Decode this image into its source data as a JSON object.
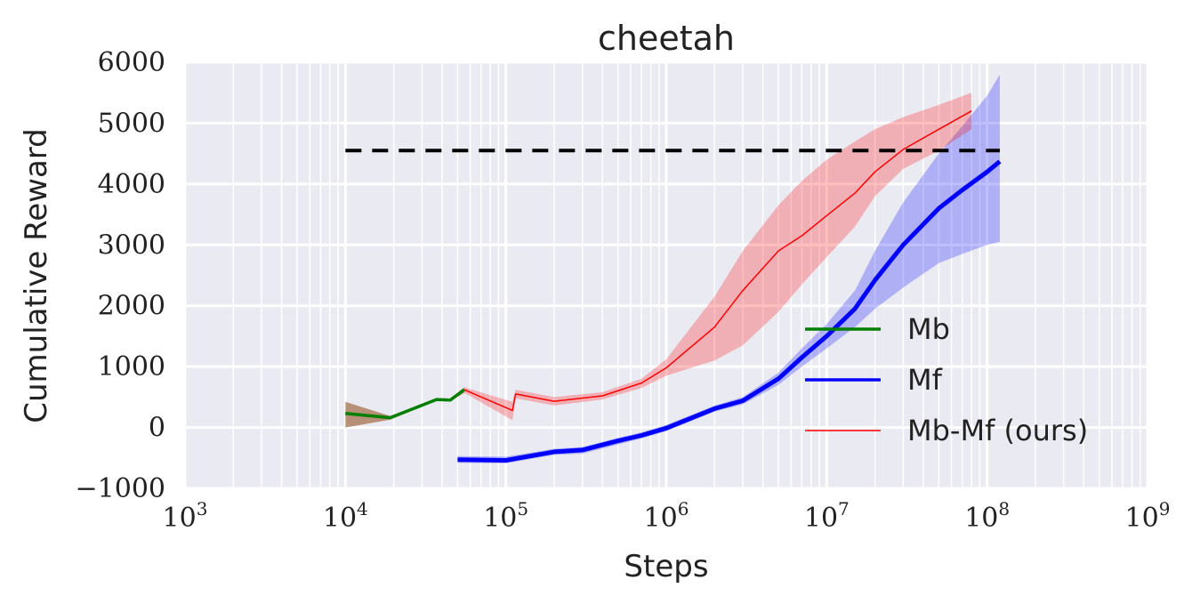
{
  "chart_data": {
    "type": "line",
    "title": "cheetah",
    "xlabel": "Steps",
    "ylabel": "Cumulative Reward",
    "x_scale": "log",
    "xlim": [
      1000,
      1000000000
    ],
    "ylim": [
      -1000,
      6000
    ],
    "grid": true,
    "x_ticks": [
      {
        "value": 1000,
        "base": "10",
        "exp": "3"
      },
      {
        "value": 10000,
        "base": "10",
        "exp": "4"
      },
      {
        "value": 100000,
        "base": "10",
        "exp": "5"
      },
      {
        "value": 1000000,
        "base": "10",
        "exp": "6"
      },
      {
        "value": 10000000,
        "base": "10",
        "exp": "7"
      },
      {
        "value": 100000000,
        "base": "10",
        "exp": "8"
      },
      {
        "value": 1000000000,
        "base": "10",
        "exp": "9"
      }
    ],
    "y_ticks": [
      {
        "value": 6000,
        "label": "6000"
      },
      {
        "value": 5000,
        "label": "5000"
      },
      {
        "value": 4000,
        "label": "4000"
      },
      {
        "value": 3000,
        "label": "3000"
      },
      {
        "value": 2000,
        "label": "2000"
      },
      {
        "value": 1000,
        "label": "1000"
      },
      {
        "value": 0,
        "label": "0"
      },
      {
        "value": -1000,
        "label": "−1000"
      }
    ],
    "legend_position": "lower-right",
    "reference_line": {
      "y": 4550,
      "x_range": [
        10000,
        120000000
      ],
      "style": "dashed",
      "color": "#000000"
    },
    "series": [
      {
        "name": "Mb",
        "color": "#008000",
        "band_color": "#8b4513",
        "x": [
          10000,
          19000,
          37000,
          45000,
          55000
        ],
        "y": [
          230,
          160,
          460,
          450,
          620
        ],
        "lower": [
          0,
          130,
          440,
          430,
          570
        ],
        "upper": [
          420,
          190,
          480,
          470,
          660
        ]
      },
      {
        "name": "Mf",
        "color": "#0000ff",
        "band_color": "#0000ff",
        "x": [
          50000,
          100000,
          200000,
          300000,
          500000,
          700000,
          1000000,
          2000000,
          3000000,
          5000000,
          7000000,
          10000000,
          15000000,
          20000000,
          30000000,
          50000000,
          70000000,
          100000000,
          120000000
        ],
        "y": [
          -530,
          -540,
          -400,
          -370,
          -220,
          -130,
          -10,
          310,
          440,
          800,
          1150,
          1500,
          1950,
          2420,
          3000,
          3600,
          3900,
          4200,
          4370
        ],
        "lower": [
          -580,
          -590,
          -450,
          -430,
          -280,
          -180,
          -60,
          260,
          380,
          700,
          1000,
          1300,
          1650,
          1950,
          2300,
          2700,
          2850,
          3000,
          3050
        ],
        "upper": [
          -470,
          -480,
          -350,
          -320,
          -170,
          -80,
          40,
          360,
          500,
          900,
          1300,
          1700,
          2250,
          2900,
          3700,
          4500,
          4950,
          5450,
          5800
        ]
      },
      {
        "name": "Mb-Mf (ours)",
        "color": "#ff0000",
        "band_color": "#ff0000",
        "x": [
          55000,
          110000,
          115000,
          200000,
          400000,
          700000,
          1000000,
          2000000,
          3000000,
          5000000,
          7000000,
          10000000,
          15000000,
          20000000,
          30000000,
          50000000,
          80000000
        ],
        "y": [
          620,
          280,
          550,
          430,
          520,
          730,
          980,
          1650,
          2250,
          2900,
          3150,
          3480,
          3850,
          4200,
          4570,
          4900,
          5200
        ],
        "lower": [
          570,
          120,
          480,
          360,
          460,
          650,
          850,
          1100,
          1350,
          1900,
          2350,
          2800,
          3300,
          3800,
          4250,
          4550,
          4900
        ],
        "upper": [
          660,
          420,
          620,
          500,
          580,
          800,
          1120,
          2150,
          2900,
          3650,
          4050,
          4400,
          4700,
          4900,
          5100,
          5300,
          5500
        ]
      }
    ]
  }
}
